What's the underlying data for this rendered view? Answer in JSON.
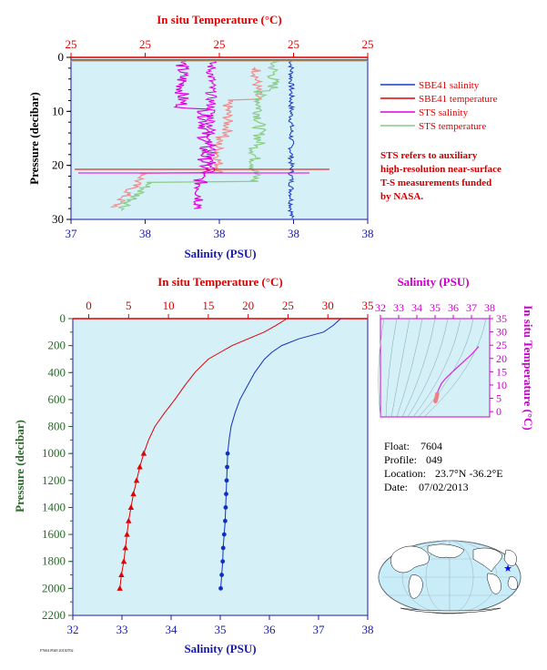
{
  "chart_data": [
    {
      "type": "line",
      "top_axis_label": "In situ Temperature (°C)",
      "top_ticks": [
        "25",
        "25",
        "25",
        "25",
        "25"
      ],
      "xlabel": "Salinity (PSU)",
      "bottom_ticks": [
        "37",
        "38",
        "38",
        "38",
        "38"
      ],
      "ylabel": "Pressure (decibar)",
      "y_ticks": [
        "0",
        "10",
        "20",
        "30"
      ],
      "ylim": [
        30,
        0
      ],
      "legend_position": "right",
      "legend": [
        {
          "name": "SBE41 salinity",
          "color": "#1a3bbf"
        },
        {
          "name": "SBE41 temperature",
          "color": "#e00000"
        },
        {
          "name": "STS salinity",
          "color": "#e000e0"
        },
        {
          "name": "STS temperature",
          "color": "#88cc88"
        }
      ],
      "note_lines": [
        "STS refers to auxiliary",
        "high-resolution near-surface",
        "T-S measurements funded",
        "by NASA."
      ]
    },
    {
      "type": "line",
      "top_axis_label": "In situ Temperature (°C)",
      "top_ticks": [
        "0",
        "5",
        "10",
        "15",
        "20",
        "25",
        "30",
        "35"
      ],
      "xlabel": "Salinity (PSU)",
      "bottom_ticks": [
        "32",
        "33",
        "34",
        "35",
        "36",
        "37",
        "38"
      ],
      "ylabel": "Pressure (decibar)",
      "y_ticks": [
        "0",
        "200",
        "400",
        "600",
        "800",
        "1000",
        "1200",
        "1400",
        "1600",
        "1800",
        "2000",
        "2200"
      ],
      "ylim": [
        2200,
        0
      ],
      "temperature_xlim": [
        -2,
        35
      ],
      "salinity_xlim": [
        32,
        38
      ],
      "temperature_profile": {
        "color": "#e00000",
        "pressure": [
          0,
          10,
          50,
          100,
          150,
          200,
          250,
          300,
          400,
          500,
          600,
          700,
          800,
          900,
          1000,
          1100,
          1200,
          1300,
          1400,
          1500,
          1600,
          1700,
          1800,
          1900,
          2000
        ],
        "values": [
          24.8,
          24.6,
          23.5,
          22,
          20,
          18,
          16.5,
          15,
          13.3,
          12,
          10.8,
          9.5,
          8.3,
          7.5,
          6.9,
          6.4,
          6,
          5.6,
          5.3,
          5,
          4.8,
          4.6,
          4.4,
          4.1,
          3.9
        ]
      },
      "salinity_profile": {
        "color": "#1030c0",
        "pressure": [
          0,
          10,
          50,
          100,
          150,
          200,
          250,
          300,
          400,
          500,
          600,
          700,
          800,
          900,
          1000,
          1100,
          1200,
          1300,
          1400,
          1500,
          1600,
          1700,
          1800,
          1900,
          2000
        ],
        "values": [
          37.45,
          37.42,
          37.3,
          37.1,
          36.6,
          36.25,
          36.05,
          35.9,
          35.7,
          35.55,
          35.4,
          35.3,
          35.22,
          35.18,
          35.15,
          35.14,
          35.13,
          35.12,
          35.11,
          35.1,
          35.08,
          35.06,
          35.05,
          35.03,
          35.01
        ]
      },
      "sampled_from_pressure": 1000
    },
    {
      "type": "scatter",
      "top_axis_label": "Salinity (PSU)",
      "top_ticks": [
        "32",
        "33",
        "34",
        "35",
        "36",
        "37",
        "38"
      ],
      "right_axis_label": "In situ Temperature (°C)",
      "right_ticks": [
        "0",
        "5",
        "10",
        "15",
        "20",
        "25",
        "30",
        "35"
      ],
      "xlim": [
        32,
        38
      ],
      "ylim": [
        -2,
        35
      ],
      "ts_curve": {
        "color": "#e020e0",
        "salinity": [
          37.4,
          37.0,
          36.6,
          36.2,
          35.9,
          35.6,
          35.35,
          35.2,
          35.1,
          35.05,
          35.0
        ],
        "temperature": [
          24.5,
          21.5,
          19.0,
          16.5,
          14.6,
          12.6,
          10.6,
          8.4,
          6.6,
          4.6,
          3.6
        ]
      },
      "ts_points": {
        "color": "#f08080",
        "salinity": [
          35.12,
          35.1,
          35.08,
          35.06,
          35.04,
          35.02
        ],
        "temperature": [
          6.6,
          5.9,
          5.3,
          4.8,
          4.3,
          3.9
        ]
      }
    }
  ],
  "float_info": [
    {
      "label": "Float:",
      "value": "7604"
    },
    {
      "label": "Profile:",
      "value": "049"
    },
    {
      "label": "Location:",
      "value": "23.7°N  -36.2°E"
    },
    {
      "label": "Date:",
      "value": "07/02/2013"
    }
  ],
  "footer_text": "F7604 P049 20130702",
  "colors": {
    "plot_bg": "#d6f0f8",
    "axis_red": "#e00000",
    "axis_blue": "#1a1aa8",
    "axis_green": "#2b6a2b",
    "axis_magenta": "#cc00cc",
    "map_ocean": "#c8ecf8",
    "map_land": "#ffffff",
    "float_marker": "#0000ff"
  }
}
